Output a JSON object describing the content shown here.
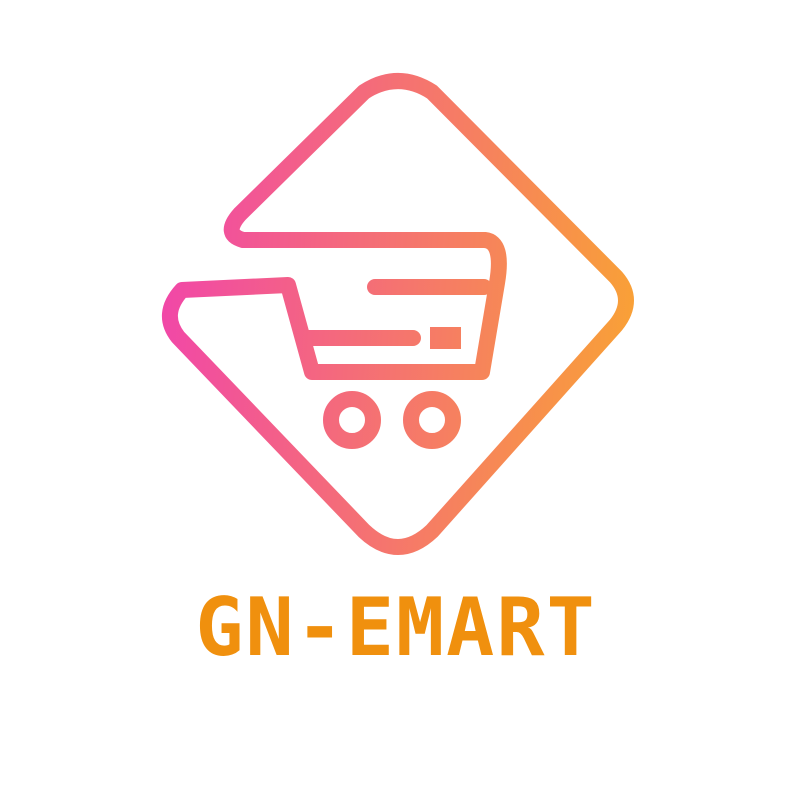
{
  "brand": {
    "name": "GN-EMART",
    "icon": "shopping-cart-diamond-icon"
  },
  "colors": {
    "gradient_start": "#f147a8",
    "gradient_end": "#f9a235",
    "wordmark_fill": "#f0900e",
    "background": "#ffffff"
  }
}
